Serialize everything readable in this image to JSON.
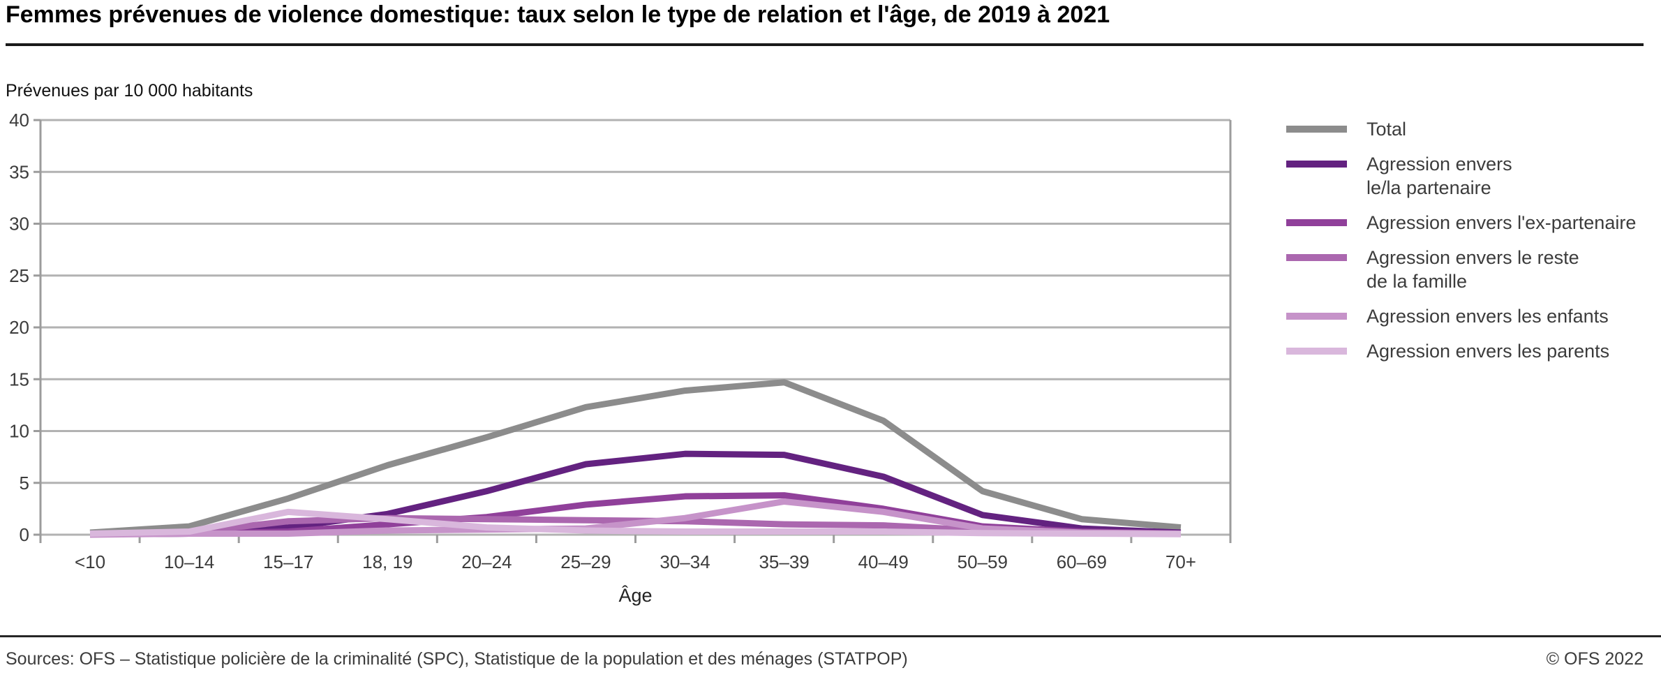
{
  "title": "Femmes prévenues de violence domestique: taux selon le type de relation et l'âge, de 2019 à 2021",
  "y_axis_title": "Prévenues par 10 000 habitants",
  "footer": {
    "sources": "Sources: OFS – Statistique policière de la criminalité (SPC), Statistique de la population et des ménages (STATPOP)",
    "copyright": "© OFS 2022"
  },
  "chart_data": {
    "type": "line",
    "title": "Femmes prévenues de violence domestique: taux selon le type de relation et l'âge, de 2019 à 2021",
    "xlabel": "Âge",
    "ylabel": "Prévenues par 10 000 habitants",
    "ylim": [
      0,
      40
    ],
    "yticks": [
      0,
      5,
      10,
      15,
      20,
      25,
      30,
      35,
      40
    ],
    "grid": true,
    "legend_position": "right",
    "categories": [
      "<10",
      "10–14",
      "15–17",
      "18, 19",
      "20–24",
      "25–29",
      "30–34",
      "35–39",
      "40–49",
      "50–59",
      "60–69",
      "70+"
    ],
    "series": [
      {
        "name": "Total",
        "label_lines": [
          "Total"
        ],
        "color": "#8c8c8c",
        "values": [
          0.2,
          0.8,
          3.5,
          6.7,
          9.4,
          12.3,
          13.9,
          14.7,
          11.0,
          4.2,
          1.5,
          0.7
        ]
      },
      {
        "name": "Agression envers le/la partenaire",
        "label_lines": [
          "Agression envers",
          "le/la partenaire"
        ],
        "color": "#632280",
        "values": [
          0.05,
          0.1,
          0.7,
          2.0,
          4.2,
          6.8,
          7.8,
          7.7,
          5.6,
          1.9,
          0.6,
          0.2
        ]
      },
      {
        "name": "Agression envers l'ex-partenaire",
        "label_lines": [
          "Agression envers l'ex-partenaire"
        ],
        "color": "#90409a",
        "values": [
          0.05,
          0.1,
          0.3,
          1.0,
          1.7,
          2.9,
          3.7,
          3.8,
          2.5,
          0.8,
          0.3,
          0.1
        ]
      },
      {
        "name": "Agression envers le reste de la famille",
        "label_lines": [
          "Agression envers le reste",
          "de la famille"
        ],
        "color": "#ab67af",
        "values": [
          0.1,
          0.2,
          1.3,
          1.6,
          1.5,
          1.4,
          1.3,
          1.0,
          0.9,
          0.4,
          0.2,
          0.1
        ]
      },
      {
        "name": "Agression envers les enfants",
        "label_lines": [
          "Agression envers les enfants"
        ],
        "color": "#c693c9",
        "values": [
          0.0,
          0.1,
          0.1,
          0.4,
          0.5,
          0.6,
          1.6,
          3.2,
          2.2,
          0.6,
          0.2,
          0.1
        ]
      },
      {
        "name": "Agression envers les parents",
        "label_lines": [
          "Agression envers les parents"
        ],
        "color": "#d9b7dc",
        "values": [
          0.1,
          0.3,
          2.2,
          1.5,
          0.7,
          0.4,
          0.3,
          0.3,
          0.3,
          0.15,
          0.1,
          0.05
        ]
      }
    ],
    "style": {
      "grid_color": "#b2b2b2",
      "axis_color": "#9c9c9c",
      "tick_label_color": "#3c3c3c",
      "line_width": 9
    }
  }
}
